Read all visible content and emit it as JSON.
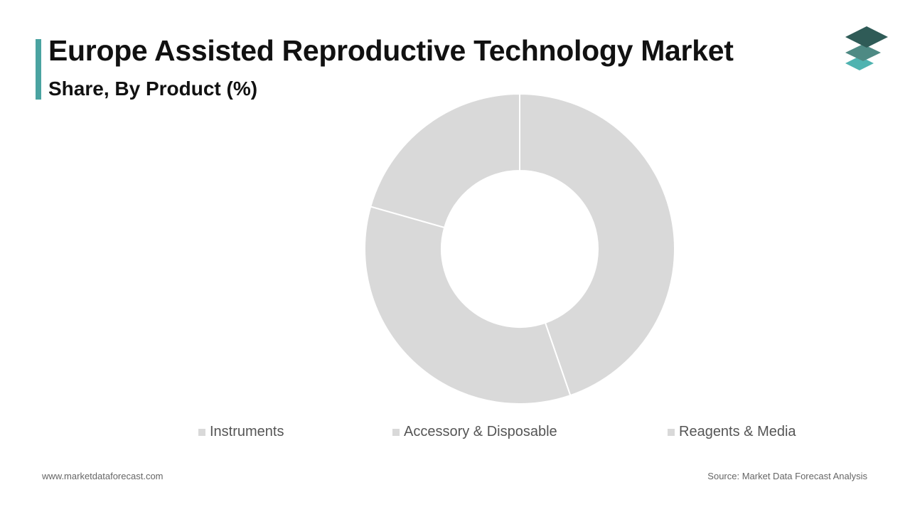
{
  "header": {
    "title": "Europe Assisted Reproductive Technology Market",
    "subtitle": "Share, By Product (%)"
  },
  "logo": {
    "icon": "stacked-layers-icon",
    "colors": [
      "#2f5b57",
      "#4e8a84",
      "#4fb3b0"
    ]
  },
  "accent_color": "#4aa3a1",
  "chart_data": {
    "type": "pie",
    "donut": true,
    "categories": [
      "Instruments",
      "Accessory & Disposable",
      "Reagents & Media"
    ],
    "values": [
      44.7,
      34.7,
      20.6
    ],
    "colors": [
      "#d9d9d9",
      "#d9d9d9",
      "#d9d9d9"
    ],
    "start_angle": "12 o'clock",
    "direction": "clockwise",
    "legend_position": "bottom"
  },
  "legend": {
    "items": [
      {
        "label": "Instruments",
        "color": "#d9d9d9"
      },
      {
        "label": "Accessory & Disposable",
        "color": "#d9d9d9"
      },
      {
        "label": "Reagents & Media",
        "color": "#d9d9d9"
      }
    ]
  },
  "footer": {
    "website": "www.marketdataforecast.com",
    "source": "Source: Market Data Forecast Analysis"
  }
}
